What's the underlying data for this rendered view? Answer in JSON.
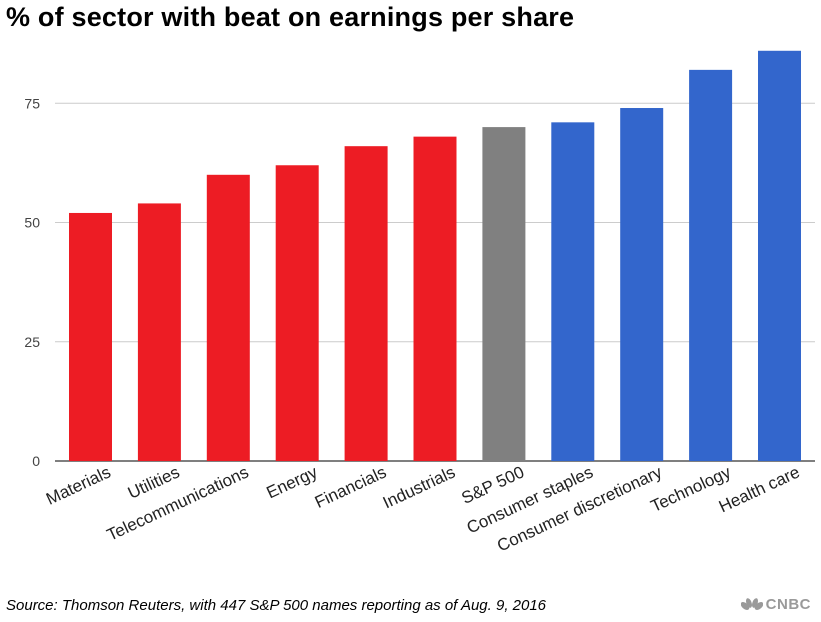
{
  "title": "% of sector with beat on earnings per share",
  "source": "Source: Thomson Reuters, with 447 S&P 500 names reporting as of Aug. 9, 2016",
  "logo": {
    "text": "CNBC",
    "icon": "peacock-icon"
  },
  "colors": {
    "red": "#ed1c24",
    "gray": "#808080",
    "blue": "#3366cc",
    "grid": "#cccccc"
  },
  "chart_data": {
    "type": "bar",
    "categories": [
      "Materials",
      "Utilities",
      "Telecommunications",
      "Energy",
      "Financials",
      "Industrials",
      "S&P 500",
      "Consumer staples",
      "Consumer discretionary",
      "Technology",
      "Health care"
    ],
    "values": [
      52,
      54,
      60,
      62,
      66,
      68,
      70,
      71,
      74,
      82,
      86
    ],
    "bar_colors": [
      "red",
      "red",
      "red",
      "red",
      "red",
      "red",
      "gray",
      "blue",
      "blue",
      "blue",
      "blue"
    ],
    "yticks": [
      0,
      25,
      50,
      75
    ],
    "ylim": [
      0,
      90
    ],
    "grid": true,
    "legend": false
  }
}
